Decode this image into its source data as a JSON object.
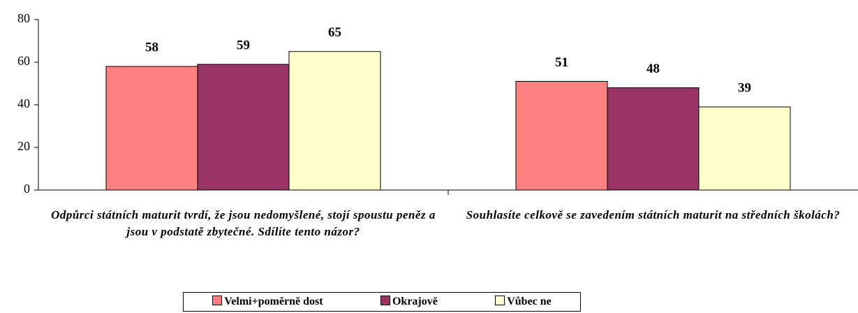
{
  "chart_data": {
    "type": "bar",
    "categories": [
      "Odpůrci státních maturit tvrdí, že jsou nedomyšlené, stojí spoustu peněz a jsou v podstatě zbytečné. Sdílíte tento názor?",
      "Souhlasíte celkově se zavedením státních maturit na středních školách?"
    ],
    "series": [
      {
        "name": "Velmi+poměrně dost",
        "color": "#ff8080",
        "values": [
          58,
          51
        ]
      },
      {
        "name": "Okrajově",
        "color": "#993366",
        "values": [
          59,
          48
        ]
      },
      {
        "name": "Vůbec ne",
        "color": "#ffffcc",
        "values": [
          65,
          39
        ]
      }
    ],
    "ylim": [
      0,
      80
    ],
    "yticks": [
      0,
      20,
      40,
      60,
      80
    ],
    "legend": "bottom"
  }
}
